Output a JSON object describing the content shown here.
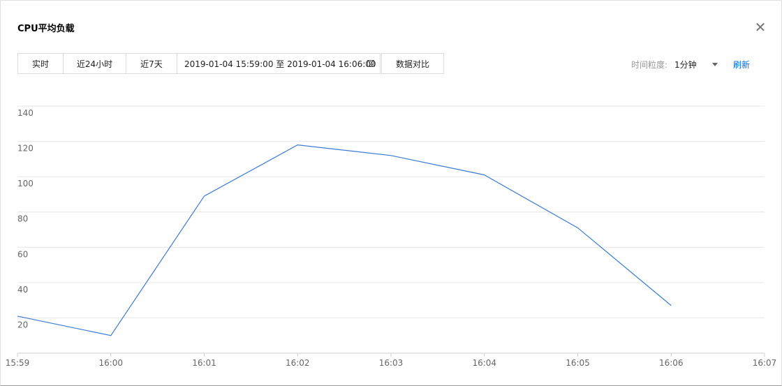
{
  "dialog": {
    "title": "CPU平均负载",
    "close_icon": "close-icon"
  },
  "toolbar": {
    "tabs": [
      "实时",
      "近24小时",
      "近7天"
    ],
    "date_range": "2019-01-04 15:59:00 至 2019-01-04 16:06:00",
    "calendar_icon": "calendar-icon",
    "compare_label": "数据对比"
  },
  "controls": {
    "granularity_label": "时间粒度:",
    "granularity_value": "1分钟",
    "refresh_label": "刷新"
  },
  "colors": {
    "line": "#3a7ad6",
    "grid": "#e6e6e6",
    "link": "#006eff"
  },
  "chart_data": {
    "type": "line",
    "x": [
      "15:59",
      "16:00",
      "16:01",
      "16:02",
      "16:03",
      "16:04",
      "16:05",
      "16:06"
    ],
    "x_ticks": [
      "15:59",
      "16:00",
      "16:01",
      "16:02",
      "16:03",
      "16:04",
      "16:05",
      "16:06",
      "16:07"
    ],
    "series": [
      {
        "values": [
          21,
          10,
          89,
          118,
          112,
          101,
          71,
          27
        ]
      }
    ],
    "y_ticks": [
      20,
      40,
      60,
      80,
      100,
      120,
      140
    ],
    "ylim": [
      0,
      140
    ],
    "grid": true
  }
}
